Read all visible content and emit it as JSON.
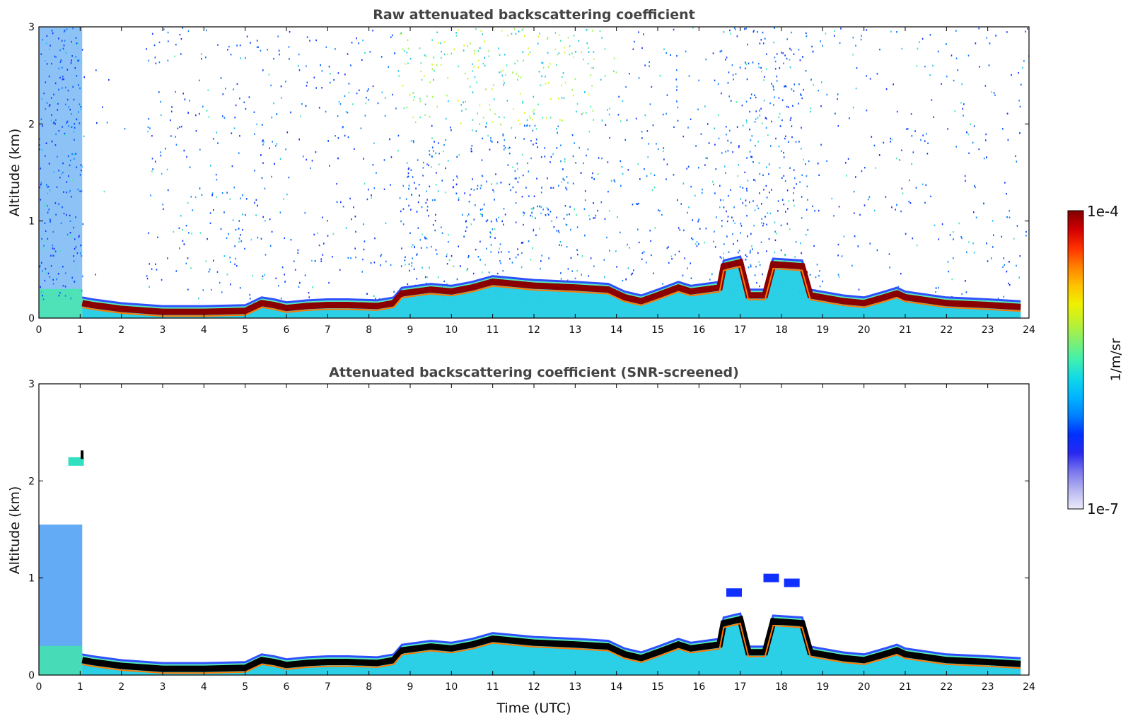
{
  "chart_data": [
    {
      "type": "heatmap",
      "title": "Raw attenuated backscattering coefficient",
      "xlabel": "",
      "ylabel": "Altitude (km)",
      "xlim": [
        0,
        24
      ],
      "ylim": [
        0,
        3
      ],
      "xticks": [
        "0",
        "1",
        "2",
        "3",
        "4",
        "5",
        "6",
        "7",
        "8",
        "9",
        "10",
        "11",
        "12",
        "13",
        "14",
        "15",
        "16",
        "17",
        "18",
        "19",
        "20",
        "21",
        "22",
        "23",
        "24"
      ],
      "yticks": [
        "0",
        "1",
        "2",
        "3"
      ],
      "layer_top_km": [
        [
          1.05,
          0.22
        ],
        [
          1.3,
          0.2
        ],
        [
          2,
          0.16
        ],
        [
          3,
          0.13
        ],
        [
          4,
          0.13
        ],
        [
          5,
          0.14
        ],
        [
          5.4,
          0.22
        ],
        [
          5.7,
          0.2
        ],
        [
          6,
          0.17
        ],
        [
          6.5,
          0.19
        ],
        [
          7,
          0.2
        ],
        [
          7.5,
          0.2
        ],
        [
          8.2,
          0.19
        ],
        [
          8.6,
          0.22
        ],
        [
          8.8,
          0.32
        ],
        [
          9.5,
          0.36
        ],
        [
          10,
          0.34
        ],
        [
          10.5,
          0.38
        ],
        [
          11,
          0.44
        ],
        [
          12,
          0.4
        ],
        [
          13,
          0.38
        ],
        [
          13.8,
          0.36
        ],
        [
          14.2,
          0.28
        ],
        [
          14.6,
          0.24
        ],
        [
          15,
          0.3
        ],
        [
          15.5,
          0.38
        ],
        [
          15.8,
          0.34
        ],
        [
          16.5,
          0.38
        ],
        [
          16.6,
          0.6
        ],
        [
          17,
          0.64
        ],
        [
          17.2,
          0.3
        ],
        [
          17.6,
          0.3
        ],
        [
          17.8,
          0.62
        ],
        [
          18.5,
          0.6
        ],
        [
          18.7,
          0.3
        ],
        [
          19.5,
          0.24
        ],
        [
          20,
          0.22
        ],
        [
          20.5,
          0.28
        ],
        [
          20.8,
          0.32
        ],
        [
          21,
          0.28
        ],
        [
          22,
          0.22
        ],
        [
          23,
          0.2
        ],
        [
          23.8,
          0.18
        ]
      ],
      "noise_extent_km": 3
    },
    {
      "type": "heatmap",
      "title": "Attenuated backscattering coefficient (SNR-screened)",
      "xlabel": "Time (UTC)",
      "ylabel": "Altitude (km)",
      "xlim": [
        0,
        24
      ],
      "ylim": [
        0,
        3
      ],
      "xticks": [
        "0",
        "1",
        "2",
        "3",
        "4",
        "5",
        "6",
        "7",
        "8",
        "9",
        "10",
        "11",
        "12",
        "13",
        "14",
        "15",
        "16",
        "17",
        "18",
        "19",
        "20",
        "21",
        "22",
        "23",
        "24"
      ],
      "yticks": [
        "0",
        "1",
        "2",
        "3"
      ],
      "layer_top_km": [
        [
          1.05,
          0.22
        ],
        [
          1.3,
          0.2
        ],
        [
          2,
          0.16
        ],
        [
          3,
          0.13
        ],
        [
          4,
          0.13
        ],
        [
          5,
          0.14
        ],
        [
          5.4,
          0.22
        ],
        [
          5.7,
          0.2
        ],
        [
          6,
          0.17
        ],
        [
          6.5,
          0.19
        ],
        [
          7,
          0.2
        ],
        [
          7.5,
          0.2
        ],
        [
          8.2,
          0.19
        ],
        [
          8.6,
          0.22
        ],
        [
          8.8,
          0.32
        ],
        [
          9.5,
          0.36
        ],
        [
          10,
          0.34
        ],
        [
          10.5,
          0.38
        ],
        [
          11,
          0.44
        ],
        [
          12,
          0.4
        ],
        [
          13,
          0.38
        ],
        [
          13.8,
          0.36
        ],
        [
          14.2,
          0.28
        ],
        [
          14.6,
          0.24
        ],
        [
          15,
          0.3
        ],
        [
          15.5,
          0.38
        ],
        [
          15.8,
          0.34
        ],
        [
          16.5,
          0.38
        ],
        [
          16.6,
          0.6
        ],
        [
          17,
          0.64
        ],
        [
          17.2,
          0.3
        ],
        [
          17.6,
          0.3
        ],
        [
          17.8,
          0.62
        ],
        [
          18.5,
          0.6
        ],
        [
          18.7,
          0.3
        ],
        [
          19.5,
          0.24
        ],
        [
          20,
          0.22
        ],
        [
          20.5,
          0.28
        ],
        [
          20.8,
          0.32
        ],
        [
          21,
          0.28
        ],
        [
          22,
          0.22
        ],
        [
          23,
          0.2
        ],
        [
          23.8,
          0.18
        ]
      ],
      "noise_extent_km": 0
    }
  ],
  "colorbar": {
    "label": "1/m/sr",
    "max_label": "1e-4",
    "min_label": "1e-7",
    "colors": [
      "#ecebfa",
      "#b8b6f0",
      "#7a78ec",
      "#2828f0",
      "#0030ff",
      "#0080ff",
      "#00b4ff",
      "#10d8e8",
      "#40f0b0",
      "#80f070",
      "#c0f030",
      "#f0f000",
      "#ffc000",
      "#ff8000",
      "#ff3000",
      "#d00000",
      "#800000"
    ]
  }
}
